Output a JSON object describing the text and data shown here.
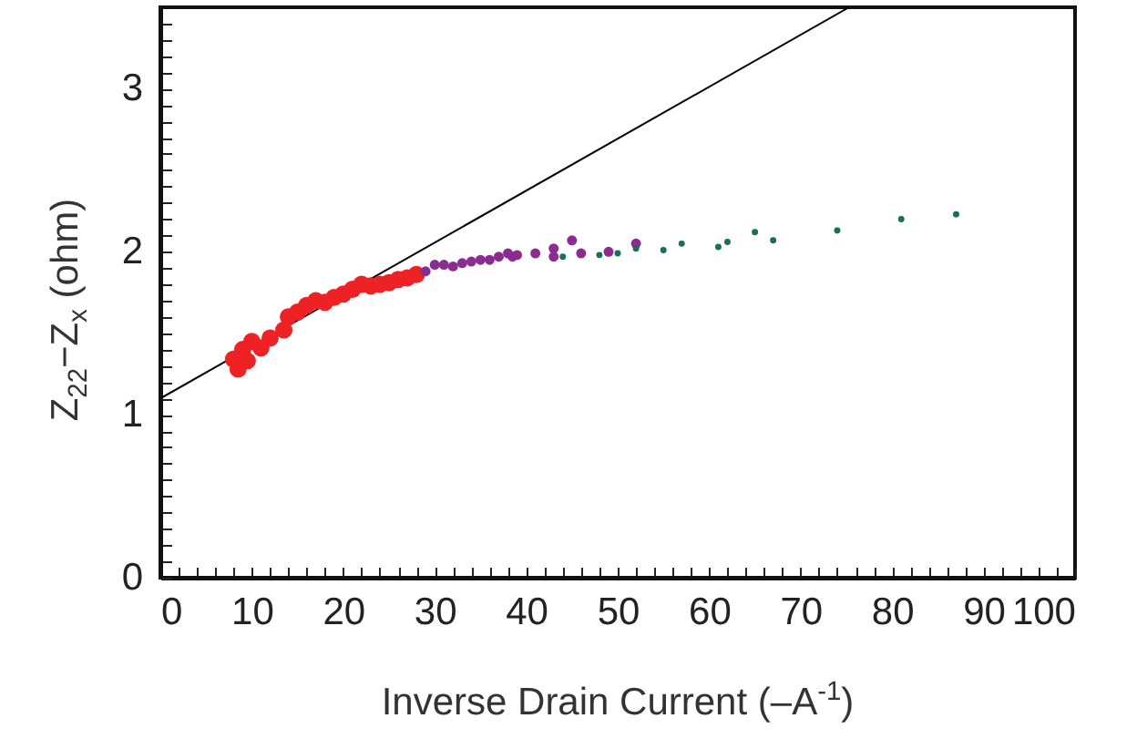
{
  "chart_data": {
    "type": "scatter",
    "xlabel": "Inverse Drain Current (–A$^{-1}$)",
    "ylabel": "Z$_{22}$−Z$_{x}$ (ohm)",
    "xlim": [
      0,
      100
    ],
    "ylim": [
      0,
      3.5
    ],
    "marker": "circle",
    "grid": false,
    "xticks": [
      0,
      {
        "value": 2,
        "label": null
      },
      {
        "value": 4,
        "label": null
      },
      {
        "value": 6,
        "label": null
      },
      {
        "value": 8,
        "label": null
      },
      10,
      {
        "value": 12,
        "label": null
      },
      {
        "value": 14,
        "label": null
      },
      {
        "value": 16,
        "label": null
      },
      {
        "value": 18,
        "label": null
      },
      20,
      {
        "value": 22,
        "label": null
      },
      {
        "value": 24,
        "label": null
      },
      {
        "value": 26,
        "label": null
      },
      {
        "value": 28,
        "label": null
      },
      30,
      {
        "value": 32,
        "label": null
      },
      {
        "value": 34,
        "label": null
      },
      {
        "value": 36,
        "label": null
      },
      {
        "value": 38,
        "label": null
      },
      40,
      {
        "value": 42,
        "label": null
      },
      {
        "value": 44,
        "label": null
      },
      {
        "value": 46,
        "label": null
      },
      {
        "value": 48,
        "label": null
      },
      50,
      {
        "value": 52,
        "label": null
      },
      {
        "value": 54,
        "label": null
      },
      {
        "value": 56,
        "label": null
      },
      {
        "value": 58,
        "label": null
      },
      60,
      {
        "value": 62,
        "label": null
      },
      {
        "value": 64,
        "label": null
      },
      {
        "value": 66,
        "label": null
      },
      {
        "value": 68,
        "label": null
      },
      70,
      {
        "value": 72,
        "label": null
      },
      {
        "value": 74,
        "label": null
      },
      {
        "value": 76,
        "label": null
      },
      {
        "value": 78,
        "label": null
      },
      80,
      {
        "value": 82,
        "label": null
      },
      {
        "value": 84,
        "label": null
      },
      {
        "value": 86,
        "label": null
      },
      {
        "value": 88,
        "label": null
      },
      90,
      {
        "value": 92,
        "label": null
      },
      {
        "value": 94,
        "label": null
      },
      {
        "value": 96,
        "label": null
      },
      {
        "value": 98,
        "label": null
      },
      100
    ],
    "yticks": [
      0,
      {
        "value": 0.1,
        "label": null
      },
      {
        "value": 0.2,
        "label": null
      },
      {
        "value": 0.3,
        "label": null
      },
      {
        "value": 0.4,
        "label": null
      },
      {
        "value": 0.5,
        "label": null
      },
      {
        "value": 0.6,
        "label": null
      },
      {
        "value": 0.7,
        "label": null
      },
      {
        "value": 0.8,
        "label": null
      },
      {
        "value": 0.9,
        "label": null
      },
      1,
      {
        "value": 1.1,
        "label": null
      },
      {
        "value": 1.2,
        "label": null
      },
      {
        "value": 1.3,
        "label": null
      },
      {
        "value": 1.4,
        "label": null
      },
      {
        "value": 1.5,
        "label": null
      },
      {
        "value": 1.6,
        "label": null
      },
      {
        "value": 1.7,
        "label": null
      },
      {
        "value": 1.8,
        "label": null
      },
      {
        "value": 1.9,
        "label": null
      },
      2,
      {
        "value": 2.1,
        "label": null
      },
      {
        "value": 2.2,
        "label": null
      },
      {
        "value": 2.3,
        "label": null
      },
      {
        "value": 2.4,
        "label": null
      },
      {
        "value": 2.5,
        "label": null
      },
      {
        "value": 2.6,
        "label": null
      },
      {
        "value": 2.7,
        "label": null
      },
      {
        "value": 2.8,
        "label": null
      },
      {
        "value": 2.9,
        "label": null
      },
      3,
      {
        "value": 3.1,
        "label": null
      },
      {
        "value": 3.2,
        "label": null
      },
      {
        "value": 3.3,
        "label": null
      },
      {
        "value": 3.4,
        "label": null
      }
    ],
    "series": [
      {
        "type": "line",
        "marker": "none",
        "color": "#000000",
        "x": [
          0,
          75.3
        ],
        "values": [
          1.1,
          3.5
        ]
      },
      {
        "color": "#ee2225",
        "x": [
          8.5,
          8,
          9,
          9.5,
          10,
          11,
          12,
          13.5,
          14,
          15,
          16,
          17,
          18,
          19,
          20,
          21,
          22,
          23,
          24,
          25,
          26,
          27,
          28
        ],
        "values": [
          1.28,
          1.34,
          1.4,
          1.33,
          1.45,
          1.41,
          1.47,
          1.52,
          1.6,
          1.63,
          1.67,
          1.7,
          1.69,
          1.72,
          1.74,
          1.77,
          1.8,
          1.79,
          1.8,
          1.81,
          1.83,
          1.84,
          1.86
        ]
      },
      {
        "color": "#8b2c91",
        "x": [
          29,
          30,
          31,
          32,
          33,
          34,
          35,
          36,
          37,
          38,
          38.5,
          39,
          41,
          43,
          43,
          45,
          46,
          49,
          52
        ],
        "values": [
          1.88,
          1.92,
          1.92,
          1.91,
          1.93,
          1.94,
          1.95,
          1.95,
          1.97,
          1.99,
          1.97,
          1.98,
          1.99,
          2.02,
          1.97,
          2.07,
          1.99,
          2.0,
          2.05
        ]
      },
      {
        "color": "#1a6e5a",
        "x": [
          44,
          48,
          50,
          52,
          55,
          57,
          61,
          62,
          65,
          67,
          74,
          81,
          87
        ],
        "values": [
          1.97,
          1.98,
          1.99,
          2.02,
          2.01,
          2.05,
          2.03,
          2.06,
          2.12,
          2.07,
          2.13,
          2.2,
          2.23
        ]
      }
    ]
  }
}
